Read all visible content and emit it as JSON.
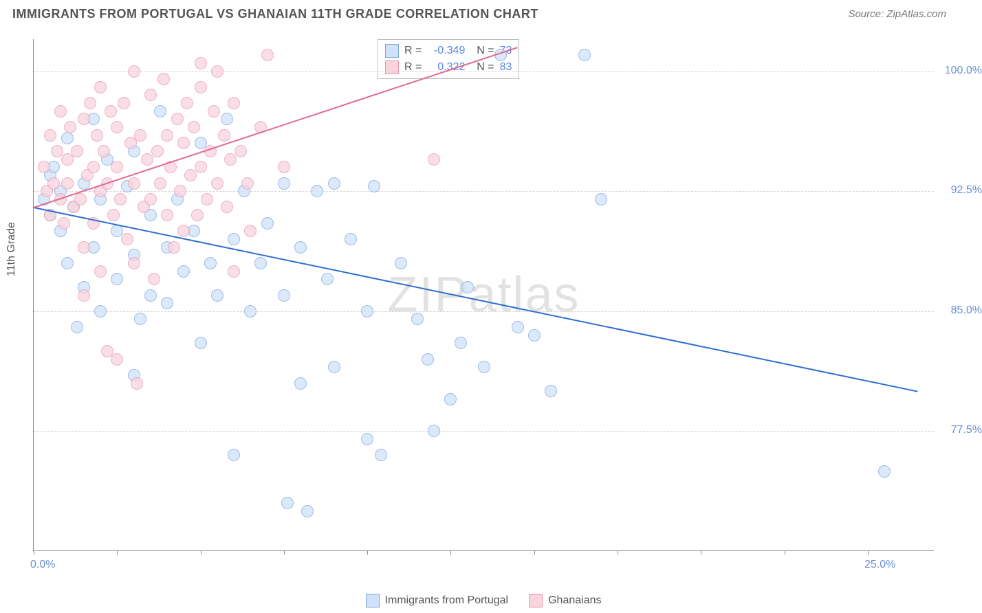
{
  "header": {
    "title": "IMMIGRANTS FROM PORTUGAL VS GHANAIAN 11TH GRADE CORRELATION CHART",
    "source": "Source: ZipAtlas.com"
  },
  "chart": {
    "type": "scatter",
    "ylabel": "11th Grade",
    "watermark": "ZIPatlas",
    "background_color": "#ffffff",
    "grid_color": "#d3d3d3",
    "axis_color": "#888888",
    "xlim": [
      0,
      27
    ],
    "ylim": [
      70,
      102
    ],
    "xticks": [
      0,
      2.5,
      5,
      7.5,
      10,
      12.5,
      15,
      17.5,
      20,
      22.5,
      25
    ],
    "xtick_labels": {
      "0": "0.0%",
      "25": "25.0%"
    },
    "yticks": [
      77.5,
      85.0,
      92.5,
      100.0
    ],
    "ytick_labels": [
      "77.5%",
      "85.0%",
      "92.5%",
      "100.0%"
    ],
    "point_radius": 9,
    "series": [
      {
        "name": "Immigrants from Portugal",
        "fill": "#cfe2f9",
        "stroke": "#7aa8e0",
        "line_color": "#2f6fd0",
        "R": "-0.349",
        "N": "73",
        "trend": {
          "x1": 0,
          "y1": 91.5,
          "x2": 26.5,
          "y2": 80.0
        },
        "points": [
          [
            0.3,
            92.0
          ],
          [
            0.5,
            93.5
          ],
          [
            0.5,
            91.0
          ],
          [
            0.6,
            94.0
          ],
          [
            0.8,
            92.5
          ],
          [
            0.8,
            90.0
          ],
          [
            1.0,
            95.8
          ],
          [
            1.0,
            88.0
          ],
          [
            1.2,
            91.5
          ],
          [
            1.3,
            84.0
          ],
          [
            1.5,
            93.0
          ],
          [
            1.5,
            86.5
          ],
          [
            1.8,
            97.0
          ],
          [
            1.8,
            89.0
          ],
          [
            2.0,
            92.0
          ],
          [
            2.0,
            85.0
          ],
          [
            2.2,
            94.5
          ],
          [
            2.5,
            90.0
          ],
          [
            2.5,
            87.0
          ],
          [
            2.8,
            92.8
          ],
          [
            3.0,
            95.0
          ],
          [
            3.0,
            88.5
          ],
          [
            3.0,
            81.0
          ],
          [
            3.2,
            84.5
          ],
          [
            3.5,
            86.0
          ],
          [
            3.5,
            91.0
          ],
          [
            3.8,
            97.5
          ],
          [
            4.0,
            89.0
          ],
          [
            4.0,
            85.5
          ],
          [
            4.3,
            92.0
          ],
          [
            4.5,
            87.5
          ],
          [
            4.8,
            90.0
          ],
          [
            5.0,
            95.5
          ],
          [
            5.0,
            83.0
          ],
          [
            5.3,
            88.0
          ],
          [
            5.5,
            86.0
          ],
          [
            5.8,
            97.0
          ],
          [
            6.0,
            89.5
          ],
          [
            6.0,
            76.0
          ],
          [
            6.3,
            92.5
          ],
          [
            6.5,
            85.0
          ],
          [
            6.8,
            88.0
          ],
          [
            7.0,
            90.5
          ],
          [
            7.5,
            93.0
          ],
          [
            7.5,
            86.0
          ],
          [
            7.6,
            73.0
          ],
          [
            8.0,
            89.0
          ],
          [
            8.0,
            80.5
          ],
          [
            8.2,
            72.5
          ],
          [
            8.5,
            92.5
          ],
          [
            8.8,
            87.0
          ],
          [
            9.0,
            93.0
          ],
          [
            9.0,
            81.5
          ],
          [
            9.5,
            89.5
          ],
          [
            10.0,
            85.0
          ],
          [
            10.0,
            77.0
          ],
          [
            10.2,
            92.8
          ],
          [
            10.4,
            76.0
          ],
          [
            11.0,
            88.0
          ],
          [
            11.5,
            84.5
          ],
          [
            11.8,
            82.0
          ],
          [
            12.0,
            77.5
          ],
          [
            12.5,
            79.5
          ],
          [
            12.8,
            83.0
          ],
          [
            13.0,
            86.5
          ],
          [
            13.5,
            81.5
          ],
          [
            14.0,
            101.0
          ],
          [
            14.5,
            84.0
          ],
          [
            15.0,
            83.5
          ],
          [
            15.5,
            80.0
          ],
          [
            16.5,
            101.0
          ],
          [
            17.0,
            92.0
          ],
          [
            25.5,
            75.0
          ]
        ]
      },
      {
        "name": "Ghanaians",
        "fill": "#f9d3de",
        "stroke": "#e996b0",
        "line_color": "#e06a93",
        "R": "0.322",
        "N": "83",
        "trend": {
          "x1": 0,
          "y1": 91.5,
          "x2": 14.5,
          "y2": 101.5
        },
        "points": [
          [
            0.3,
            94.0
          ],
          [
            0.4,
            92.5
          ],
          [
            0.5,
            96.0
          ],
          [
            0.5,
            91.0
          ],
          [
            0.6,
            93.0
          ],
          [
            0.7,
            95.0
          ],
          [
            0.8,
            97.5
          ],
          [
            0.8,
            92.0
          ],
          [
            0.9,
            90.5
          ],
          [
            1.0,
            94.5
          ],
          [
            1.0,
            93.0
          ],
          [
            1.1,
            96.5
          ],
          [
            1.2,
            91.5
          ],
          [
            1.3,
            95.0
          ],
          [
            1.4,
            92.0
          ],
          [
            1.5,
            97.0
          ],
          [
            1.5,
            89.0
          ],
          [
            1.5,
            86.0
          ],
          [
            1.6,
            93.5
          ],
          [
            1.7,
            98.0
          ],
          [
            1.8,
            94.0
          ],
          [
            1.8,
            90.5
          ],
          [
            1.9,
            96.0
          ],
          [
            2.0,
            92.5
          ],
          [
            2.0,
            99.0
          ],
          [
            2.0,
            87.5
          ],
          [
            2.1,
            95.0
          ],
          [
            2.2,
            93.0
          ],
          [
            2.2,
            82.5
          ],
          [
            2.3,
            97.5
          ],
          [
            2.4,
            91.0
          ],
          [
            2.5,
            94.0
          ],
          [
            2.5,
            96.5
          ],
          [
            2.5,
            82.0
          ],
          [
            2.6,
            92.0
          ],
          [
            2.7,
            98.0
          ],
          [
            2.8,
            89.5
          ],
          [
            2.9,
            95.5
          ],
          [
            3.0,
            93.0
          ],
          [
            3.0,
            100.0
          ],
          [
            3.0,
            88.0
          ],
          [
            3.1,
            80.5
          ],
          [
            3.2,
            96.0
          ],
          [
            3.3,
            91.5
          ],
          [
            3.4,
            94.5
          ],
          [
            3.5,
            98.5
          ],
          [
            3.5,
            92.0
          ],
          [
            3.6,
            87.0
          ],
          [
            3.7,
            95.0
          ],
          [
            3.8,
            93.0
          ],
          [
            3.9,
            99.5
          ],
          [
            4.0,
            91.0
          ],
          [
            4.0,
            96.0
          ],
          [
            4.1,
            94.0
          ],
          [
            4.2,
            89.0
          ],
          [
            4.3,
            97.0
          ],
          [
            4.4,
            92.5
          ],
          [
            4.5,
            95.5
          ],
          [
            4.5,
            90.0
          ],
          [
            4.6,
            98.0
          ],
          [
            4.7,
            93.5
          ],
          [
            4.8,
            96.5
          ],
          [
            4.9,
            91.0
          ],
          [
            5.0,
            99.0
          ],
          [
            5.0,
            94.0
          ],
          [
            5.0,
            100.5
          ],
          [
            5.2,
            92.0
          ],
          [
            5.3,
            95.0
          ],
          [
            5.4,
            97.5
          ],
          [
            5.5,
            93.0
          ],
          [
            5.5,
            100.0
          ],
          [
            5.7,
            96.0
          ],
          [
            5.8,
            91.5
          ],
          [
            5.9,
            94.5
          ],
          [
            6.0,
            98.0
          ],
          [
            6.0,
            87.5
          ],
          [
            6.2,
            95.0
          ],
          [
            6.4,
            93.0
          ],
          [
            6.5,
            90.0
          ],
          [
            6.8,
            96.5
          ],
          [
            7.0,
            101.0
          ],
          [
            7.5,
            94.0
          ],
          [
            12.0,
            94.5
          ]
        ]
      }
    ],
    "bottom_legend": [
      {
        "label": "Immigrants from Portugal",
        "fill": "#cfe2f9",
        "stroke": "#7aa8e0"
      },
      {
        "label": "Ghanaians",
        "fill": "#f9d3de",
        "stroke": "#e996b0"
      }
    ]
  }
}
